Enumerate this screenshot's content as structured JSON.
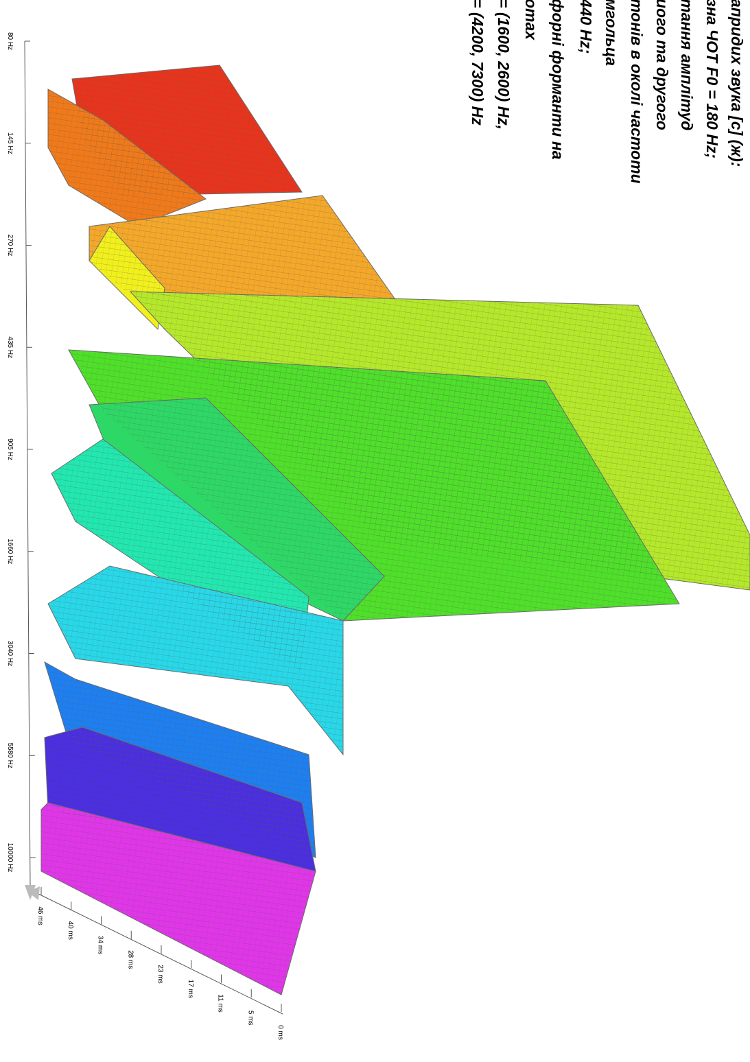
{
  "chart_data": {
    "type": "waterfall3d",
    "text_lines": [
      "апридих звука [с] (ж):",
      "зна ЧОТ F0 = 180 Hz;",
      "тання амплітуд",
      "иого та другого",
      "тонів в околі частоти",
      "мгольца",
      "440 Hz;",
      "форні форманти на",
      "omax",
      "= (1600, 2600) Hz,",
      "= (4200, 7300) Hz"
    ],
    "frequency_labels": [
      "80 Hz",
      "145 Hz",
      "270 Hz",
      "435 Hz",
      "905 Hz",
      "1660 Hz",
      "3040 Hz",
      "5580 Hz",
      "10000 Hz"
    ],
    "time_labels": [
      "46 ms",
      "40 ms",
      "34 ms",
      "28 ms",
      "23 ms",
      "17 ms",
      "11 ms",
      "5 ms",
      "0 ms"
    ]
  }
}
